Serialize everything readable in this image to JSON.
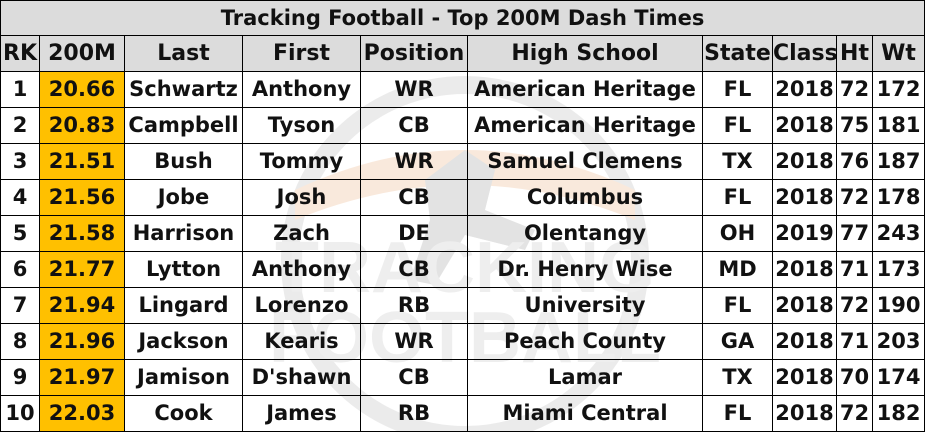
{
  "title": "Tracking Football - Top 200M Dash Times",
  "columns": [
    "RK",
    "200M",
    "Last",
    "First",
    "Position",
    "High School",
    "State",
    "Class",
    "Ht",
    "Wt"
  ],
  "rows": [
    [
      "1",
      "20.66",
      "Schwartz",
      "Anthony",
      "WR",
      "American Heritage",
      "FL",
      "2018",
      "72",
      "172"
    ],
    [
      "2",
      "20.83",
      "Campbell",
      "Tyson",
      "CB",
      "American Heritage",
      "FL",
      "2018",
      "75",
      "181"
    ],
    [
      "3",
      "21.51",
      "Bush",
      "Tommy",
      "WR",
      "Samuel Clemens",
      "TX",
      "2018",
      "76",
      "187"
    ],
    [
      "4",
      "21.56",
      "Jobe",
      "Josh",
      "CB",
      "Columbus",
      "FL",
      "2018",
      "72",
      "178"
    ],
    [
      "5",
      "21.58",
      "Harrison",
      "Zach",
      "DE",
      "Olentangy",
      "OH",
      "2019",
      "77",
      "243"
    ],
    [
      "6",
      "21.77",
      "Lytton",
      "Anthony",
      "CB",
      "Dr. Henry Wise",
      "MD",
      "2018",
      "71",
      "173"
    ],
    [
      "7",
      "21.94",
      "Lingard",
      "Lorenzo",
      "RB",
      "University",
      "FL",
      "2018",
      "72",
      "190"
    ],
    [
      "8",
      "21.96",
      "Jackson",
      "Kearis",
      "WR",
      "Peach County",
      "GA",
      "2018",
      "71",
      "203"
    ],
    [
      "9",
      "21.97",
      "Jamison",
      "D'shawn",
      "CB",
      "Lamar",
      "TX",
      "2018",
      "70",
      "174"
    ],
    [
      "10",
      "22.03",
      "Cook",
      "James",
      "RB",
      "Miami Central",
      "FL",
      "2018",
      "72",
      "182"
    ]
  ],
  "watermark": {
    "line1": "TRACKING",
    "line2": "FOOTBALL",
    "icon": "football-player-logo-icon"
  },
  "colors": {
    "header_bg": "#d9d9d9",
    "time_highlight": "#ffc000",
    "watermark": "#e07b2a"
  }
}
